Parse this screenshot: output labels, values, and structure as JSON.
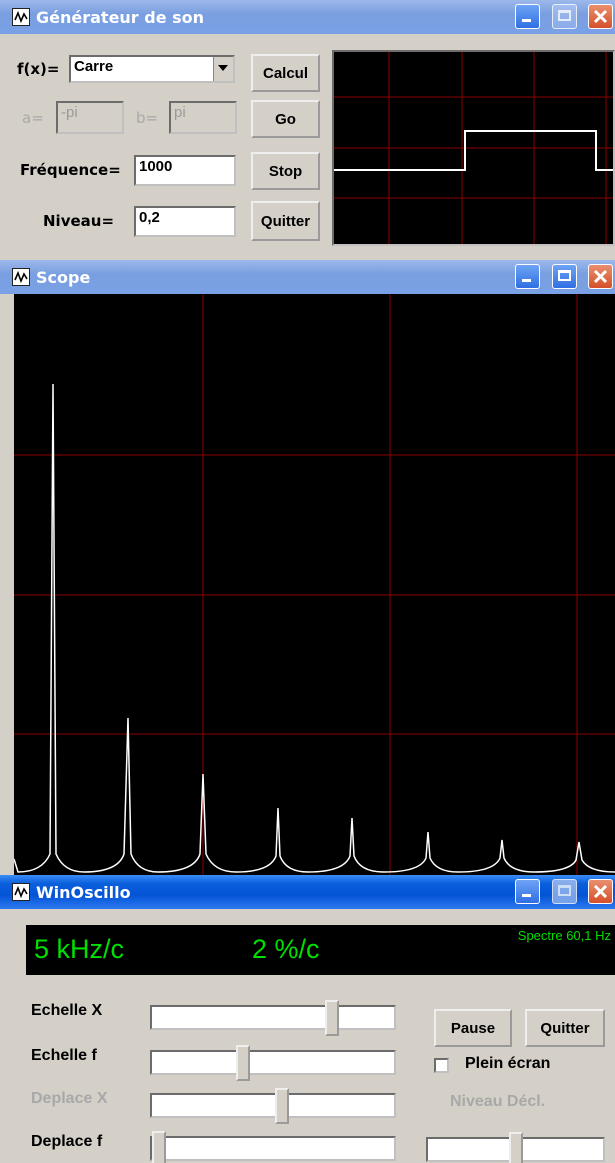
{
  "generator": {
    "title": "Générateur de son",
    "fx_label": "f(x)=",
    "function_value": "Carre",
    "a_label": "a=",
    "a_value": "-pi",
    "b_label": "b=",
    "b_value": "pi",
    "freq_label": "Fréquence=",
    "freq_value": "1000",
    "level_label": "Niveau=",
    "level_value": "0,2",
    "buttons": {
      "calc": "Calcul",
      "go": "Go",
      "stop": "Stop",
      "quit": "Quitter"
    }
  },
  "scope": {
    "title": "Scope"
  },
  "winoscillo": {
    "title": "WinOscillo",
    "x_scale": "5 kHz/c",
    "y_scale": "2 %/c",
    "spectrum_info": "Spectre 60,1 Hz",
    "sliders": [
      {
        "label": "Echelle X",
        "level": 0.76,
        "enabled": true
      },
      {
        "label": "Echelle f",
        "level": 0.37,
        "enabled": true
      },
      {
        "label": "Deplace X",
        "level": 0.54,
        "enabled": false
      },
      {
        "label": "Deplace f",
        "level": 0.0,
        "enabled": true
      }
    ],
    "pause": "Pause",
    "quit": "Quitter",
    "fullscreen_label": "Plein écran",
    "fullscreen_checked": false,
    "trigger_label": "Niveau Décl.",
    "trigger_level": 0.5
  },
  "colors": {
    "grid": "#8b0000",
    "trace": "#ffffff",
    "readout": "#00e000",
    "title_active": "#0a5fdc",
    "title_inactive": "#7a9fe0"
  }
}
